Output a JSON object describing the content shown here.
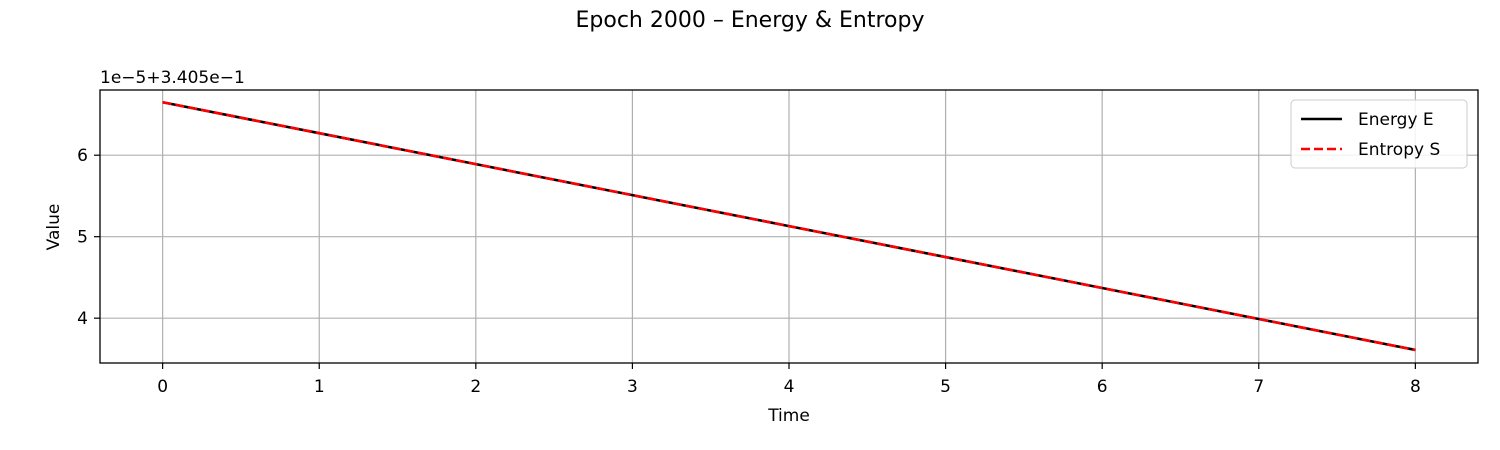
{
  "chart_data": {
    "type": "line",
    "title": "Epoch 2000 – Energy & Entropy",
    "xlabel": "Time",
    "ylabel": "Value",
    "y_offset_label": "1e−5+3.405e−1",
    "x": [
      0,
      1,
      2,
      3,
      4,
      5,
      6,
      7,
      8
    ],
    "xlim": [
      -0.4,
      8.4
    ],
    "ylim": [
      3.45,
      6.8
    ],
    "x_ticks": [
      0,
      1,
      2,
      3,
      4,
      5,
      6,
      7,
      8
    ],
    "y_ticks": [
      4,
      5,
      6
    ],
    "y_units_note": "values shown relative to offset 1e-5 + 3.405e-1",
    "grid": true,
    "legend_position": "top-right",
    "series": [
      {
        "name": "Energy E",
        "color": "#000000",
        "style": "solid",
        "values": [
          6.65,
          6.27,
          5.89,
          5.51,
          5.13,
          4.75,
          4.37,
          3.99,
          3.61
        ]
      },
      {
        "name": "Entropy S",
        "color": "#ff0000",
        "style": "dashed",
        "values": [
          6.65,
          6.27,
          5.89,
          5.51,
          5.13,
          4.75,
          4.37,
          3.99,
          3.61
        ]
      }
    ]
  }
}
